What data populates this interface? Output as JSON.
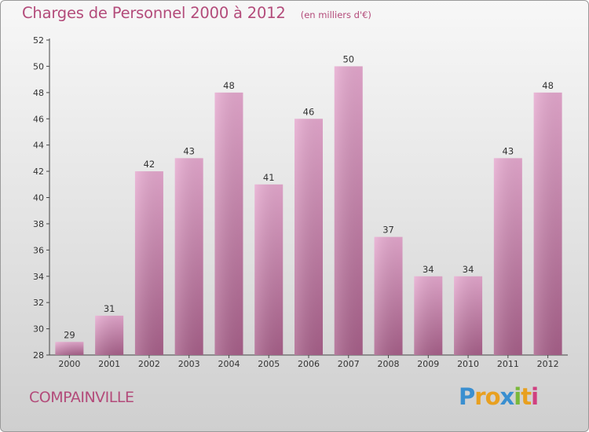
{
  "header": {
    "title": "Charges de Personnel 2000 à 2012",
    "unit": "(en milliers d'€)"
  },
  "commune": "COMPAINVILLE",
  "logo": {
    "letters": [
      "P",
      "r",
      "o",
      "x",
      "i",
      "t",
      "i"
    ],
    "colors": [
      "#3a8fd0",
      "#e8a020",
      "#e8a020",
      "#3a8fd0",
      "#7ab83a",
      "#e8a020",
      "#d04080"
    ]
  },
  "colors": {
    "accent": "#b34b7a",
    "bar_top": "#e6a9cf",
    "bar_bottom": "#a8608a"
  },
  "chart_data": {
    "type": "bar",
    "title": "Charges de Personnel 2000 à 2012",
    "subtitle": "(en milliers d'€)",
    "categories": [
      "2000",
      "2001",
      "2002",
      "2003",
      "2004",
      "2005",
      "2006",
      "2007",
      "2008",
      "2009",
      "2010",
      "2011",
      "2012"
    ],
    "values": [
      29,
      31,
      42,
      43,
      48,
      41,
      46,
      50,
      37,
      34,
      34,
      43,
      48
    ],
    "ylim": [
      28,
      52
    ],
    "yticks": [
      28,
      30,
      32,
      34,
      36,
      38,
      40,
      42,
      44,
      46,
      48,
      50,
      52
    ],
    "grid": false
  }
}
